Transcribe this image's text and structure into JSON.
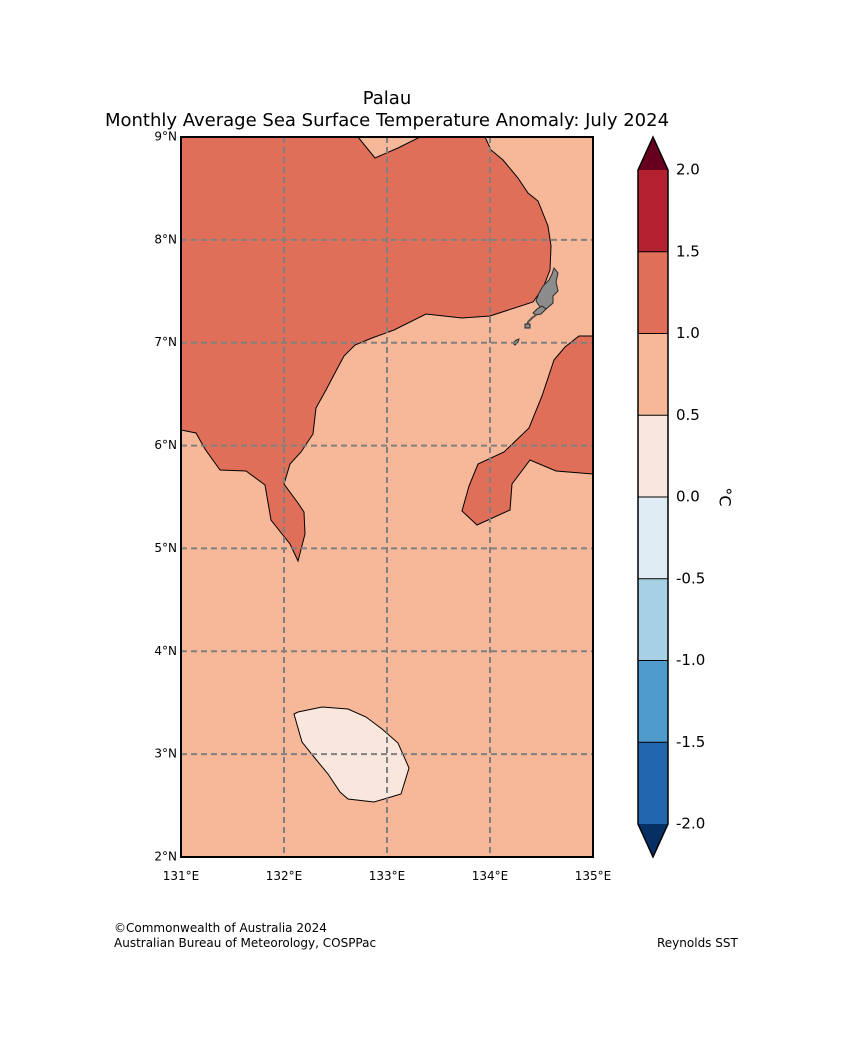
{
  "title": {
    "line1": "Palau",
    "line2": "Monthly Average Sea Surface Temperature Anomaly: July 2024"
  },
  "map": {
    "region": "Palau",
    "lon_range": [
      131,
      135
    ],
    "lat_range": [
      2,
      9
    ],
    "lon_ticks": [
      "131°E",
      "132°E",
      "133°E",
      "134°E",
      "135°E"
    ],
    "lat_ticks": [
      "9°N",
      "8°N",
      "7°N",
      "6°N",
      "5°N",
      "4°N",
      "3°N",
      "2°N"
    ],
    "gridlines": true,
    "field_description_bins": [
      "1.0 to 1.5",
      "0.5 to 1.0",
      "0.0 to 0.5"
    ]
  },
  "colorbar": {
    "unit": "°C",
    "tick_labels": [
      "2.0",
      "1.5",
      "1.0",
      "0.5",
      "0.0",
      "-0.5",
      "-1.0",
      "-1.5",
      "-2.0"
    ],
    "bins": [
      {
        "range": [
          1.5,
          2.0
        ],
        "color": "#b4212f"
      },
      {
        "range": [
          1.0,
          1.5
        ],
        "color": "#df6f59"
      },
      {
        "range": [
          0.5,
          1.0
        ],
        "color": "#f6b898"
      },
      {
        "range": [
          0.0,
          0.5
        ],
        "color": "#f9e6dc"
      },
      {
        "range": [
          -0.5,
          0.0
        ],
        "color": "#e0ecf3"
      },
      {
        "range": [
          -1.0,
          -0.5
        ],
        "color": "#a8d0e4"
      },
      {
        "range": [
          -1.5,
          -1.0
        ],
        "color": "#4f9bcb"
      },
      {
        "range": [
          -2.0,
          -1.5
        ],
        "color": "#2266ad"
      }
    ],
    "extend_max_color": "#67001f",
    "extend_min_color": "#063063"
  },
  "colors": {
    "land": "#8c8c8c",
    "grid": "#808080"
  },
  "footer": {
    "copyright": "©Commonwealth of Australia 2024",
    "agency": "Australian Bureau of Meteorology, COSPPac",
    "source": "Reynolds SST"
  }
}
